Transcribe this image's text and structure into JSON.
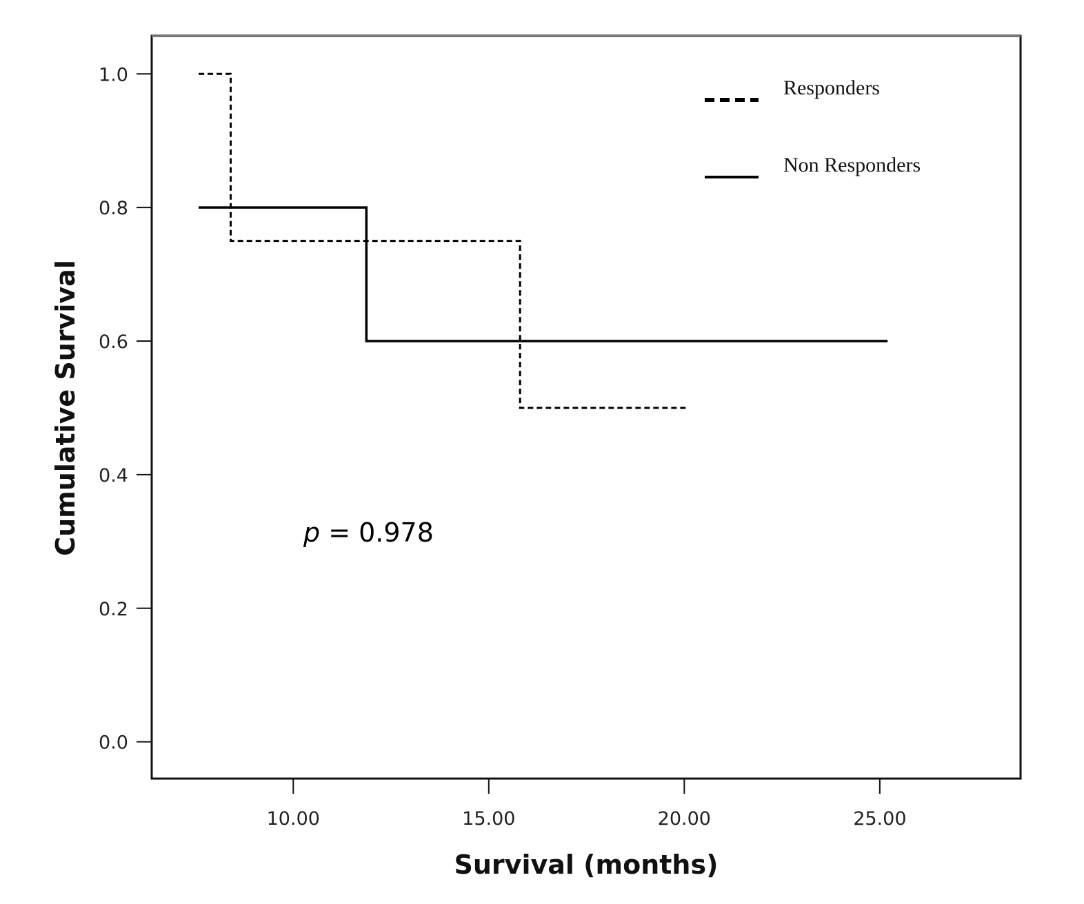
{
  "chart_data": {
    "type": "line",
    "subtype": "kaplan-meier step",
    "xlabel": "Survival (months)",
    "ylabel": "Cumulative Survival",
    "xlim": [
      6.38,
      28.6
    ],
    "ylim": [
      -0.055,
      1.057
    ],
    "xticks": [
      "10.00",
      "15.00",
      "20.00",
      "25.00"
    ],
    "xtick_values": [
      10,
      15,
      20,
      25
    ],
    "yticks": [
      "0.0",
      "0.2",
      "0.4",
      "0.6",
      "0.8",
      "1.0"
    ],
    "ytick_values": [
      0,
      0.2,
      0.4,
      0.6,
      0.8,
      1.0
    ],
    "grid": false,
    "legend_position": "top-right",
    "annotation": {
      "italic": "p",
      "text": " = 0.978"
    },
    "series": [
      {
        "name": "Responders",
        "style": "dashed",
        "color": "#000000",
        "steps": [
          [
            7.58,
            1.0
          ],
          [
            8.4,
            0.75
          ],
          [
            15.8,
            0.5
          ],
          [
            20.1,
            0.5
          ]
        ]
      },
      {
        "name": "Non Responders",
        "style": "solid",
        "color": "#000000",
        "steps": [
          [
            7.58,
            0.8
          ],
          [
            11.87,
            0.6
          ],
          [
            25.2,
            0.6
          ]
        ]
      }
    ]
  }
}
